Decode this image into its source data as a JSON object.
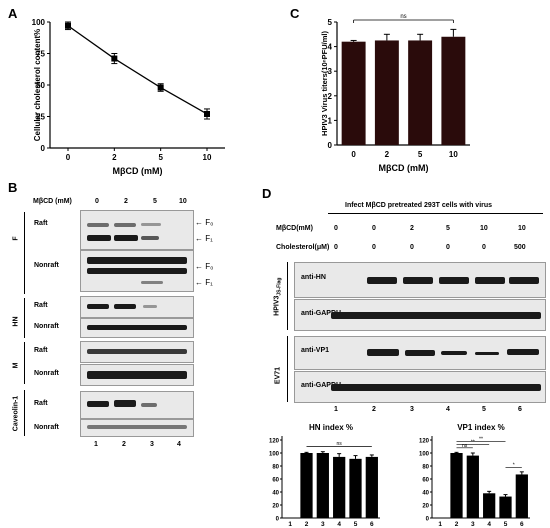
{
  "panelA": {
    "label": "A",
    "chart_data": {
      "type": "line",
      "categories": [
        "0",
        "2",
        "5",
        "10"
      ],
      "values": [
        97,
        71,
        48,
        27
      ],
      "errors": [
        3,
        4,
        3,
        4
      ],
      "title": "",
      "xlabel": "MβCD (mM)",
      "ylabel": "Cellular cholesterol content%",
      "yticks": [
        "0",
        "25",
        "50",
        "75",
        "100"
      ],
      "ylim": [
        0,
        100
      ]
    }
  },
  "panelC": {
    "label": "C",
    "chart_data": {
      "type": "bar",
      "categories": [
        "0",
        "2",
        "5",
        "10"
      ],
      "values": [
        4.2,
        4.25,
        4.25,
        4.4
      ],
      "errors": [
        0.05,
        0.25,
        0.25,
        0.3
      ],
      "title": "",
      "xlabel": "MβCD (mM)",
      "ylabel": "HPIV3 Virus titers(10ⁿPFU/ml)",
      "yticks": [
        "0",
        "1",
        "2",
        "3",
        "4",
        "5"
      ],
      "ylim": [
        0,
        5
      ],
      "annotation": "ns",
      "bar_color": "#2a0b0b"
    }
  },
  "panelB": {
    "label": "B",
    "header": "MβCD (mM)",
    "conc": [
      "0",
      "2",
      "5",
      "10"
    ],
    "lanes": [
      "1",
      "2",
      "3",
      "4"
    ],
    "proteins": [
      {
        "name": "F",
        "rows": [
          "Raft",
          "Nonraft"
        ]
      },
      {
        "name": "HN",
        "rows": [
          "Raft",
          "Nonraft"
        ]
      },
      {
        "name": "M",
        "rows": [
          "Raft",
          "Nonraft"
        ]
      },
      {
        "name": "Caveolin-1",
        "rows": [
          "Raft",
          "Nonraft"
        ]
      }
    ],
    "arrows": [
      "← F₀",
      "← F₁",
      "← F₀",
      "← F₁"
    ]
  },
  "panelD": {
    "label": "D",
    "title": "Infect MβCD pretreated 293T cells with virus",
    "mbcd_label": "MβCD(mM)",
    "mbcd": [
      "0",
      "0",
      "2",
      "5",
      "10",
      "10"
    ],
    "chol_label": "Cholesterol(μM)",
    "chol": [
      "0",
      "0",
      "0",
      "0",
      "0",
      "500"
    ],
    "lanes": [
      "1",
      "2",
      "3",
      "4",
      "5",
      "6"
    ],
    "group1": "HPIV3",
    "group1_sub": "JS-Flag",
    "group2": "EV71",
    "blots": [
      "anti-HN",
      "anti-GAPDH",
      "anti-VP1",
      "anti-GAPDH"
    ]
  },
  "hnChart": {
    "chart_data": {
      "type": "bar",
      "title": "HN index %",
      "categories": [
        "1",
        "2",
        "3",
        "4",
        "5",
        "6"
      ],
      "values": [
        0,
        100,
        100,
        94,
        91,
        94
      ],
      "errors": [
        0,
        1,
        2,
        5,
        5,
        3
      ],
      "yticks": [
        "0",
        "20",
        "40",
        "60",
        "80",
        "100",
        "120"
      ],
      "ylim": [
        0,
        120
      ],
      "annotation": "ns"
    }
  },
  "vp1Chart": {
    "chart_data": {
      "type": "bar",
      "title": "VP1 index %",
      "categories": [
        "1",
        "2",
        "3",
        "4",
        "5",
        "6"
      ],
      "values": [
        0,
        100,
        96,
        38,
        33,
        67
      ],
      "errors": [
        0,
        1,
        4,
        3,
        3,
        4
      ],
      "yticks": [
        "0",
        "20",
        "40",
        "60",
        "80",
        "100",
        "120"
      ],
      "ylim": [
        0,
        120
      ],
      "annotations": [
        "ns",
        "**",
        "**",
        "*"
      ]
    }
  }
}
